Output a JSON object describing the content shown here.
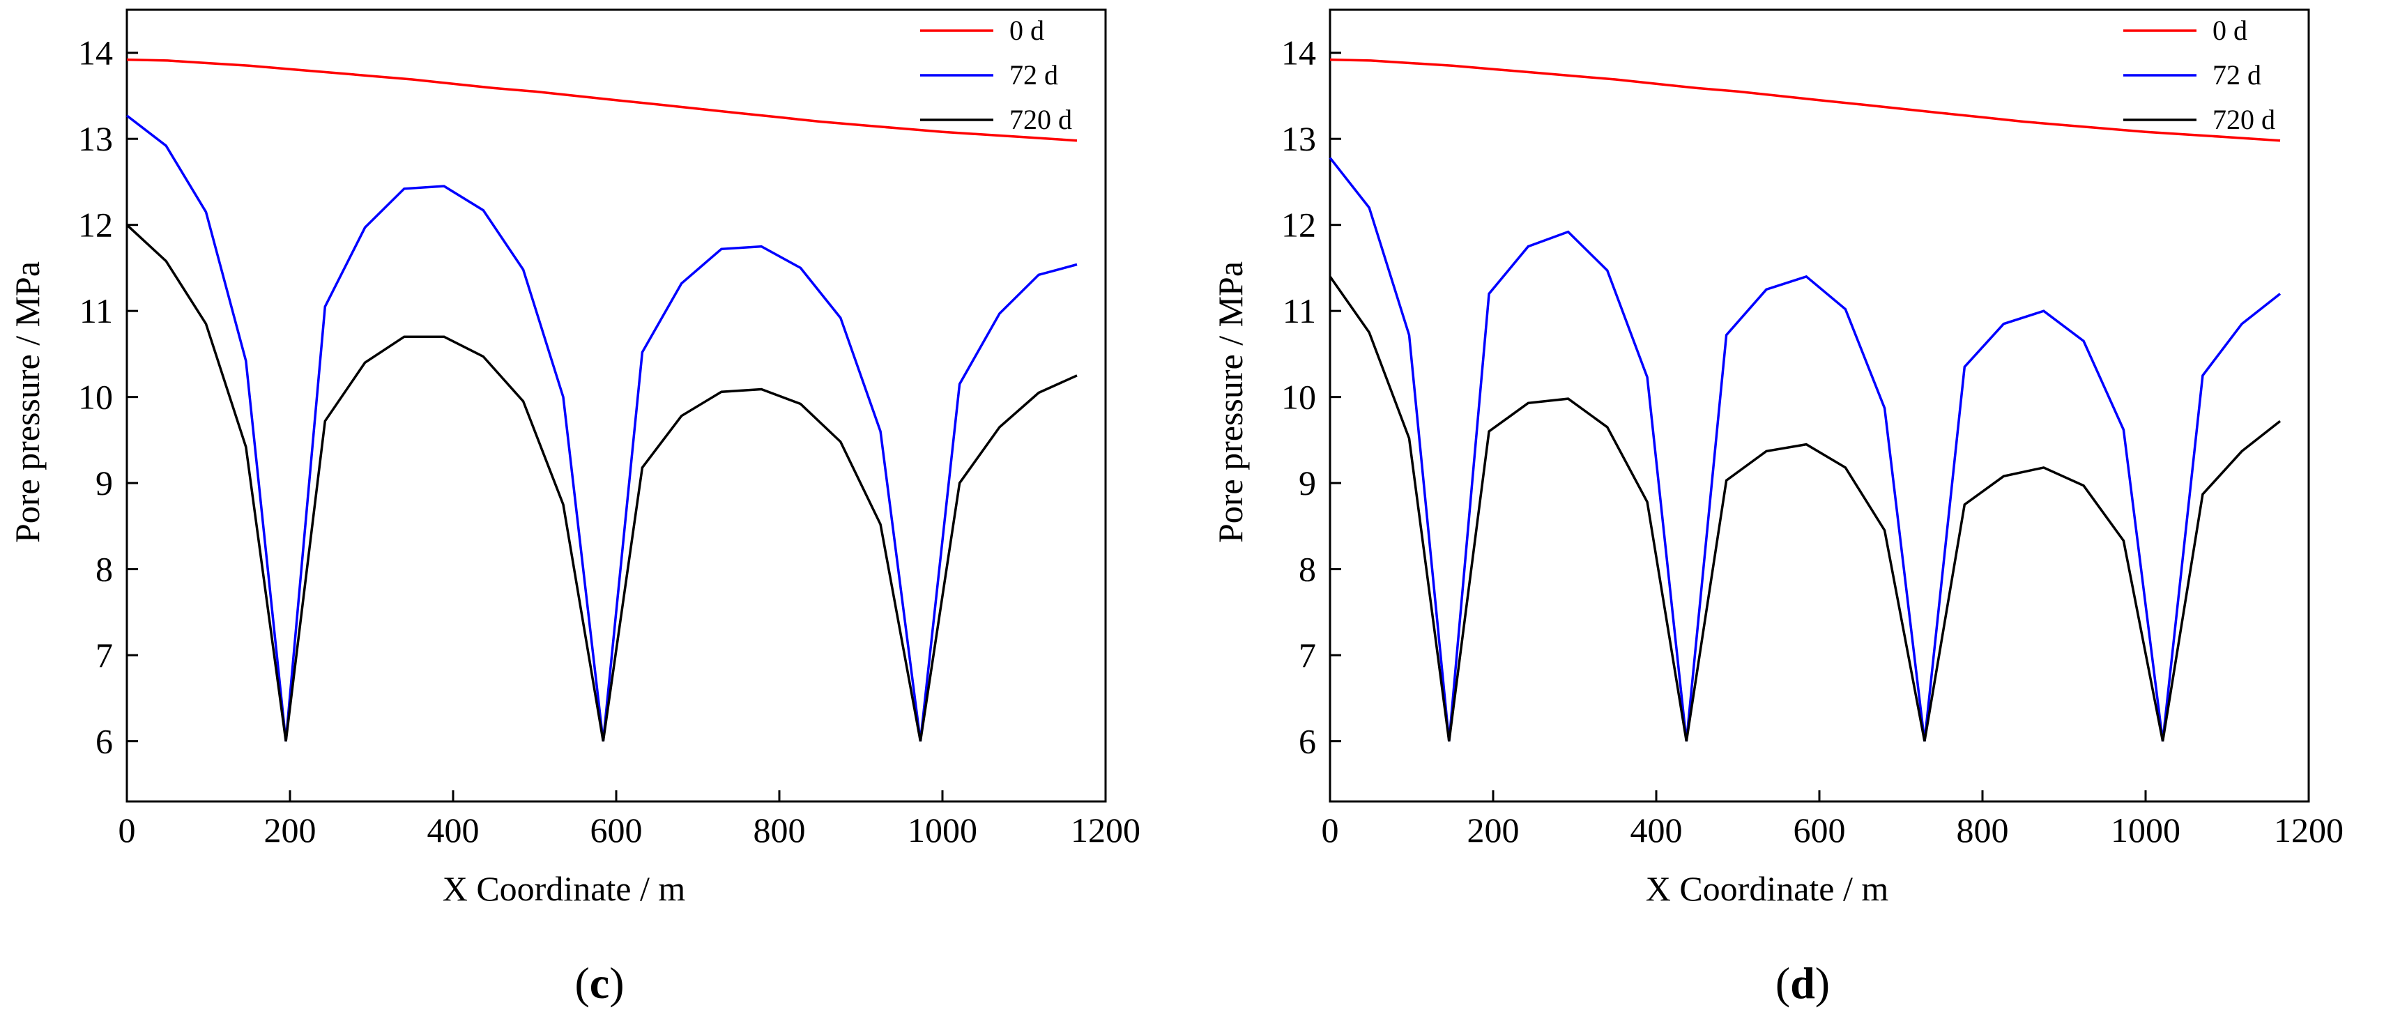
{
  "panels": [
    {
      "id": "c",
      "label_open": "(",
      "label_letter": "c",
      "label_close": ")",
      "chart_data": {
        "type": "line",
        "title": "",
        "xlabel": "X Coordinate / m",
        "ylabel": "Pore pressure / MPa",
        "xlim": [
          0,
          1200
        ],
        "ylim": [
          5.3,
          14.5
        ],
        "xticks": [
          0,
          200,
          400,
          600,
          800,
          1000,
          1200
        ],
        "yticks": [
          6,
          7,
          8,
          9,
          10,
          11,
          12,
          13,
          14
        ],
        "legend_position": "top-right",
        "series": [
          {
            "name": "0 d",
            "color": "#ff0000",
            "x": [
              0,
              50,
              100,
              150,
              200,
              250,
              300,
              350,
              400,
              450,
              500,
              550,
              600,
              650,
              700,
              750,
              800,
              850,
              900,
              950,
              1000,
              1050,
              1100,
              1165
            ],
            "values": [
              13.92,
              13.91,
              13.88,
              13.85,
              13.81,
              13.77,
              13.73,
              13.69,
              13.64,
              13.59,
              13.55,
              13.5,
              13.45,
              13.4,
              13.35,
              13.3,
              13.25,
              13.2,
              13.16,
              13.12,
              13.08,
              13.05,
              13.02,
              12.98
            ]
          },
          {
            "name": "72 d",
            "color": "#0000ff",
            "x": [
              0,
              48,
              97,
              146,
              195,
              243,
              292,
              340,
              389,
              437,
              486,
              535,
              584,
              632,
              680,
              729,
              778,
              826,
              875,
              924,
              973,
              1021,
              1070,
              1118,
              1165
            ],
            "values": [
              13.27,
              12.92,
              12.15,
              10.42,
              6.0,
              11.05,
              11.97,
              12.42,
              12.45,
              12.17,
              11.48,
              10.0,
              6.0,
              10.52,
              11.32,
              11.72,
              11.75,
              11.5,
              10.92,
              9.6,
              6.0,
              10.15,
              10.97,
              11.42,
              11.54
            ]
          },
          {
            "name": "720 d",
            "color": "#000000",
            "x": [
              0,
              48,
              97,
              146,
              195,
              243,
              292,
              340,
              389,
              437,
              486,
              535,
              584,
              632,
              680,
              729,
              778,
              826,
              875,
              924,
              973,
              1021,
              1070,
              1118,
              1165
            ],
            "values": [
              12.0,
              11.58,
              10.85,
              9.42,
              6.0,
              9.72,
              10.4,
              10.7,
              10.7,
              10.47,
              9.95,
              8.75,
              6.0,
              9.18,
              9.78,
              10.06,
              10.09,
              9.92,
              9.48,
              8.52,
              6.0,
              9.0,
              9.65,
              10.05,
              10.25
            ]
          }
        ]
      }
    },
    {
      "id": "d",
      "label_open": "(",
      "label_letter": "d",
      "label_close": ")",
      "chart_data": {
        "type": "line",
        "title": "",
        "xlabel": "X Coordinate / m",
        "ylabel": "Pore pressure / MPa",
        "xlim": [
          0,
          1200
        ],
        "ylim": [
          5.3,
          14.5
        ],
        "xticks": [
          0,
          200,
          400,
          600,
          800,
          1000,
          1200
        ],
        "yticks": [
          6,
          7,
          8,
          9,
          10,
          11,
          12,
          13,
          14
        ],
        "legend_position": "top-right",
        "series": [
          {
            "name": "0 d",
            "color": "#ff0000",
            "x": [
              0,
              50,
              100,
              150,
              200,
              250,
              300,
              350,
              400,
              450,
              500,
              550,
              600,
              650,
              700,
              750,
              800,
              850,
              900,
              950,
              1000,
              1050,
              1100,
              1165
            ],
            "values": [
              13.92,
              13.91,
              13.88,
              13.85,
              13.81,
              13.77,
              13.73,
              13.69,
              13.64,
              13.59,
              13.55,
              13.5,
              13.45,
              13.4,
              13.35,
              13.3,
              13.25,
              13.2,
              13.16,
              13.12,
              13.08,
              13.05,
              13.02,
              12.98
            ]
          },
          {
            "name": "72 d",
            "color": "#0000ff",
            "x": [
              0,
              48,
              97,
              146,
              195,
              243,
              292,
              340,
              389,
              437,
              486,
              535,
              584,
              632,
              680,
              729,
              778,
              826,
              875,
              924,
              973,
              1021,
              1070,
              1118,
              1165
            ],
            "values": [
              12.78,
              12.2,
              10.72,
              6.0,
              11.2,
              11.75,
              11.92,
              11.47,
              10.23,
              6.0,
              10.72,
              11.25,
              11.4,
              11.02,
              9.87,
              6.0,
              10.35,
              10.85,
              11.0,
              10.65,
              9.62,
              6.0,
              10.25,
              10.85,
              11.2
            ]
          },
          {
            "name": "720 d",
            "color": "#000000",
            "x": [
              0,
              48,
              97,
              146,
              195,
              243,
              292,
              340,
              389,
              437,
              486,
              535,
              584,
              632,
              680,
              729,
              778,
              826,
              875,
              924,
              973,
              1021,
              1070,
              1118,
              1165
            ],
            "values": [
              11.4,
              10.75,
              9.52,
              6.0,
              9.6,
              9.93,
              9.98,
              9.65,
              8.78,
              6.0,
              9.03,
              9.37,
              9.45,
              9.18,
              8.45,
              6.0,
              8.75,
              9.08,
              9.18,
              8.97,
              8.33,
              6.0,
              8.87,
              9.37,
              9.72
            ]
          }
        ]
      }
    }
  ]
}
